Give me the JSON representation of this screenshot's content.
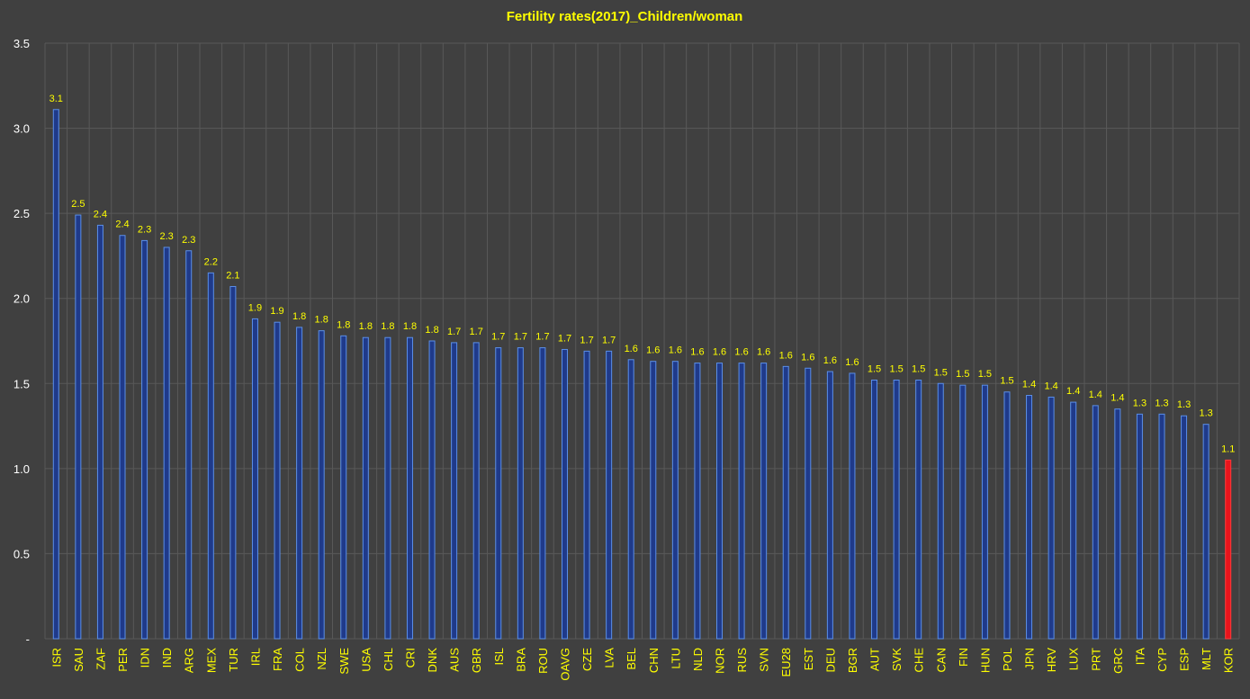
{
  "chart_data": {
    "type": "bar",
    "title": "Fertility rates(2017)_Children/woman",
    "xlabel": "",
    "ylabel": "",
    "ylim": [
      0,
      3.5
    ],
    "yticks": [
      "-",
      "0.5",
      "1.0",
      "1.5",
      "2.0",
      "2.5",
      "3.0",
      "3.5"
    ],
    "grid": true,
    "legend": "none",
    "categories": [
      "ISR",
      "SAU",
      "ZAF",
      "PER",
      "IDN",
      "IND",
      "ARG",
      "MEX",
      "TUR",
      "IRL",
      "FRA",
      "COL",
      "NZL",
      "SWE",
      "USA",
      "CHL",
      "CRI",
      "DNK",
      "AUS",
      "GBR",
      "ISL",
      "BRA",
      "ROU",
      "OAVG",
      "CZE",
      "LVA",
      "BEL",
      "CHN",
      "LTU",
      "NLD",
      "NOR",
      "RUS",
      "SVN",
      "EU28",
      "EST",
      "DEU",
      "BGR",
      "AUT",
      "SVK",
      "CHE",
      "CAN",
      "FIN",
      "HUN",
      "POL",
      "JPN",
      "HRV",
      "LUX",
      "PRT",
      "GRC",
      "ITA",
      "CYP",
      "ESP",
      "MLT",
      "KOR"
    ],
    "values": [
      3.11,
      2.49,
      2.43,
      2.37,
      2.34,
      2.3,
      2.28,
      2.15,
      2.07,
      1.88,
      1.86,
      1.83,
      1.81,
      1.78,
      1.77,
      1.77,
      1.77,
      1.75,
      1.74,
      1.74,
      1.71,
      1.71,
      1.71,
      1.7,
      1.69,
      1.69,
      1.64,
      1.63,
      1.63,
      1.62,
      1.62,
      1.62,
      1.62,
      1.6,
      1.59,
      1.57,
      1.56,
      1.52,
      1.52,
      1.52,
      1.5,
      1.49,
      1.49,
      1.45,
      1.43,
      1.42,
      1.39,
      1.37,
      1.35,
      1.32,
      1.32,
      1.31,
      1.26,
      1.05
    ],
    "labels": [
      "3.1",
      "2.5",
      "2.4",
      "2.4",
      "2.3",
      "2.3",
      "2.3",
      "2.2",
      "2.1",
      "1.9",
      "1.9",
      "1.8",
      "1.8",
      "1.8",
      "1.8",
      "1.8",
      "1.8",
      "1.8",
      "1.7",
      "1.7",
      "1.7",
      "1.7",
      "1.7",
      "1.7",
      "1.7",
      "1.7",
      "1.6",
      "1.6",
      "1.6",
      "1.6",
      "1.6",
      "1.6",
      "1.6",
      "1.6",
      "1.6",
      "1.6",
      "1.6",
      "1.5",
      "1.5",
      "1.5",
      "1.5",
      "1.5",
      "1.5",
      "1.5",
      "1.4",
      "1.4",
      "1.4",
      "1.4",
      "1.4",
      "1.3",
      "1.3",
      "1.3",
      "1.3",
      "1.1"
    ],
    "highlight_category": "KOR",
    "colors": {
      "background": "#404040",
      "grid": "#595959",
      "bar_fill": "#1f3a8a",
      "bar_edge": "#5b8fe8",
      "highlight_fill": "#e8141c",
      "highlight_edge": "#ff3b3b",
      "title": "#ffff00",
      "tick_label": "#ffff00",
      "data_label": "#ffff00",
      "y_tick_label": "#ffffff"
    }
  }
}
